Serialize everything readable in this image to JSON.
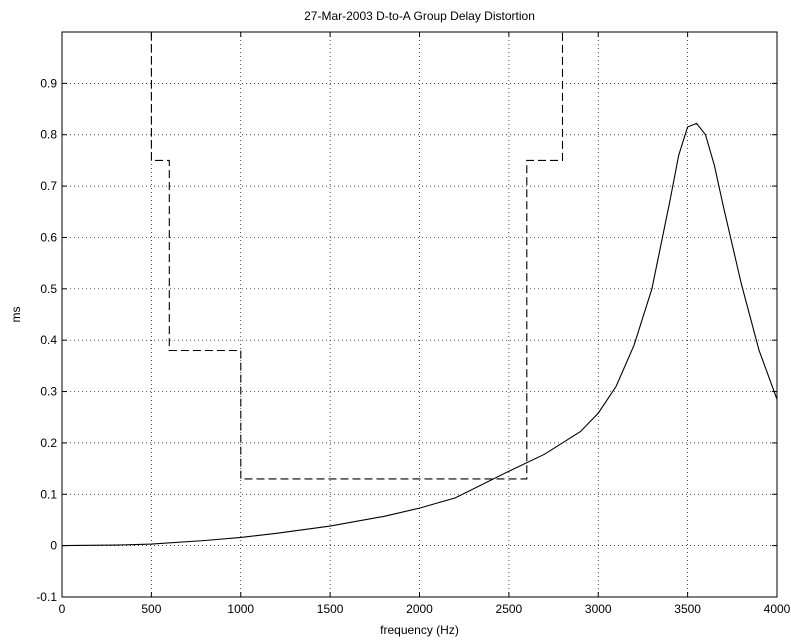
{
  "chart_data": {
    "type": "line",
    "title": "27-Mar-2003 D-to-A Group Delay Distortion",
    "xlabel": "frequency (Hz)",
    "ylabel": "ms",
    "xlim": [
      0,
      4000
    ],
    "ylim": [
      -0.1,
      1.0
    ],
    "x_ticks": [
      0,
      500,
      1000,
      1500,
      2000,
      2500,
      3000,
      3500,
      4000
    ],
    "x_tick_labels": [
      "0",
      "500",
      "1000",
      "1500",
      "2000",
      "2500",
      "3000",
      "3500",
      "4000"
    ],
    "y_ticks": [
      -0.1,
      0,
      0.1,
      0.2,
      0.3,
      0.4,
      0.5,
      0.6,
      0.7,
      0.8,
      0.9
    ],
    "y_tick_labels": [
      "-0.1",
      "0",
      "0.1",
      "0.2",
      "0.3",
      "0.4",
      "0.5",
      "0.6",
      "0.7",
      "0.8",
      "0.9"
    ],
    "grid": true,
    "box": true,
    "colors": {
      "line": "#000000",
      "grid": "#000000",
      "background": "#ffffff"
    },
    "series": [
      {
        "style": "dashed",
        "x": [
          500,
          500,
          600,
          600,
          1000,
          1000,
          2600,
          2600,
          2800,
          2800
        ],
        "y": [
          1.0,
          0.75,
          0.75,
          0.38,
          0.38,
          0.13,
          0.13,
          0.75,
          0.75,
          1.0
        ]
      },
      {
        "style": "solid",
        "x": [
          0,
          300,
          500,
          800,
          1000,
          1200,
          1500,
          1800,
          2000,
          2200,
          2500,
          2700,
          2900,
          3000,
          3100,
          3200,
          3300,
          3400,
          3450,
          3500,
          3550,
          3600,
          3650,
          3700,
          3800,
          3900,
          4000
        ],
        "y": [
          0,
          0.001,
          0.003,
          0.01,
          0.016,
          0.024,
          0.038,
          0.057,
          0.073,
          0.093,
          0.145,
          0.178,
          0.222,
          0.258,
          0.31,
          0.39,
          0.5,
          0.67,
          0.76,
          0.815,
          0.822,
          0.8,
          0.74,
          0.66,
          0.51,
          0.38,
          0.285
        ]
      }
    ]
  }
}
